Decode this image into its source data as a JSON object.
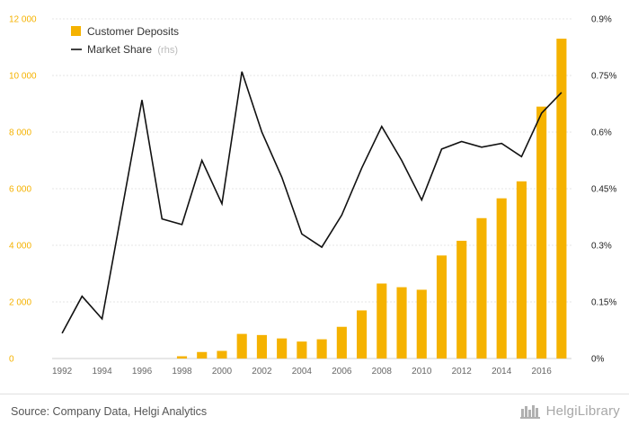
{
  "chart_data": {
    "type": "bar+line",
    "x": [
      1992,
      1993,
      1994,
      1995,
      1996,
      1997,
      1998,
      1999,
      2000,
      2001,
      2002,
      2003,
      2004,
      2005,
      2006,
      2007,
      2008,
      2009,
      2010,
      2011,
      2012,
      2013,
      2014,
      2015,
      2016,
      2017
    ],
    "x_tick_labels": [
      "1992",
      "1994",
      "1996",
      "1998",
      "2000",
      "2002",
      "2004",
      "2006",
      "2008",
      "2010",
      "2012",
      "2014",
      "2016"
    ],
    "series": [
      {
        "name": "Customer Deposits",
        "type": "bar",
        "axis": "left",
        "color": "#f5b200",
        "values": [
          0,
          0,
          0,
          0,
          0,
          0,
          80,
          230,
          270,
          870,
          830,
          710,
          600,
          680,
          1120,
          1700,
          2650,
          2520,
          2430,
          3640,
          4160,
          4960,
          5660,
          6260,
          8900,
          11300
        ]
      },
      {
        "name": "Market Share",
        "name_suffix": "(rhs)",
        "type": "line",
        "axis": "right",
        "color": "#111111",
        "values": [
          0.067,
          0.165,
          0.105,
          0.395,
          0.685,
          0.37,
          0.355,
          0.525,
          0.41,
          0.76,
          0.6,
          0.48,
          0.33,
          0.295,
          0.38,
          0.505,
          0.615,
          0.525,
          0.42,
          0.555,
          0.575,
          0.56,
          0.57,
          0.535,
          0.65,
          0.705
        ]
      }
    ],
    "y_left": {
      "min": 0,
      "max": 12000,
      "ticks": [
        0,
        2000,
        4000,
        6000,
        8000,
        10000,
        12000
      ],
      "tick_labels": [
        "0",
        "2 000",
        "4 000",
        "6 000",
        "8 000",
        "10 000",
        "12 000"
      ]
    },
    "y_right": {
      "min": 0,
      "max": 0.9,
      "ticks": [
        0,
        0.15,
        0.3,
        0.45,
        0.6,
        0.75,
        0.9
      ],
      "tick_labels": [
        "0%",
        "0.15%",
        "0.3%",
        "0.45%",
        "0.6%",
        "0.75%",
        "0.9%"
      ]
    },
    "grid": true,
    "legend_position": "top-left"
  },
  "footer": {
    "source": "Source: Company Data, Helgi Analytics",
    "logo_text": "HelgiLibrary"
  }
}
